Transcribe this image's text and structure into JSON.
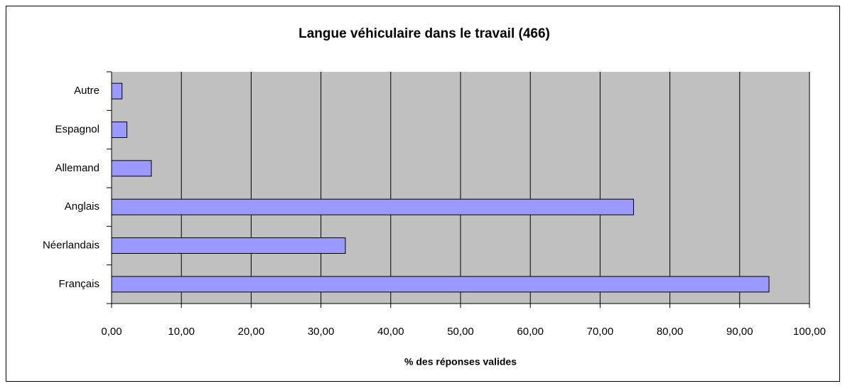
{
  "chart_data": {
    "type": "bar",
    "orientation": "horizontal",
    "title": "Langue véhiculaire dans le travail (466)",
    "x_label": "% des réponses valides",
    "categories": [
      "Autre",
      "Espagnol",
      "Allemand",
      "Anglais",
      "Néerlandais",
      "Français"
    ],
    "values": [
      1.5,
      2.2,
      5.7,
      74.8,
      33.5,
      94.2
    ],
    "color": "#9999ff",
    "xlim": [
      0,
      100
    ],
    "xticks": [
      {
        "value": 0,
        "label": "0,00"
      },
      {
        "value": 10,
        "label": "10,00"
      },
      {
        "value": 20,
        "label": "20,00"
      },
      {
        "value": 30,
        "label": "30,00"
      },
      {
        "value": 40,
        "label": "40,00"
      },
      {
        "value": 50,
        "label": "50,00"
      },
      {
        "value": 60,
        "label": "60,00"
      },
      {
        "value": 70,
        "label": "70,00"
      },
      {
        "value": 80,
        "label": "80,00"
      },
      {
        "value": 90,
        "label": "90,00"
      },
      {
        "value": 100,
        "label": "100,00"
      }
    ],
    "grid": true
  }
}
